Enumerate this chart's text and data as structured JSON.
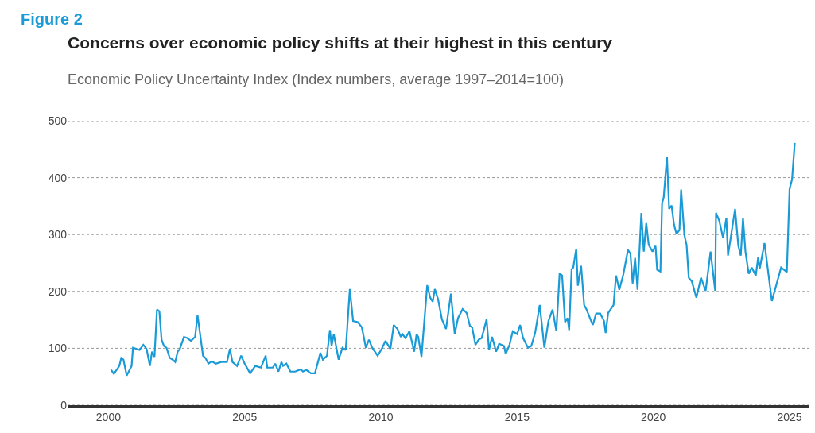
{
  "chart_data": {
    "type": "line",
    "title": "Concerns over economic policy shifts at their highest in this century",
    "subtitle": "Economic Policy Uncertainty Index (Index numbers, average 1997–2014=100)",
    "annotations": [
      "Figure 2"
    ],
    "xlim": [
      1998.5,
      2025.7
    ],
    "xticks": [
      2000,
      2005,
      2010,
      2015,
      2020,
      2025
    ],
    "ylim": [
      0,
      500
    ],
    "yticks": [
      0,
      100,
      200,
      300,
      400,
      500
    ],
    "grid": "y",
    "marker": "none",
    "line_style": "solid",
    "series": [
      {
        "color": "#1a9bd7",
        "x": [
          2000.1,
          2000.2,
          2000.4,
          2000.47,
          2000.55,
          2000.67,
          2000.85,
          2000.9,
          2001.14,
          2001.28,
          2001.4,
          2001.52,
          2001.6,
          2001.69,
          2001.78,
          2001.87,
          2001.95,
          2002.04,
          2002.13,
          2002.25,
          2002.36,
          2002.45,
          2002.54,
          2002.62,
          2002.77,
          2002.89,
          2003.03,
          2003.18,
          2003.27,
          2003.35,
          2003.47,
          2003.56,
          2003.67,
          2003.79,
          2003.94,
          2004.14,
          2004.35,
          2004.46,
          2004.55,
          2004.72,
          2004.87,
          2005.0,
          2005.2,
          2005.39,
          2005.6,
          2005.77,
          2005.83,
          2006.03,
          2006.12,
          2006.24,
          2006.35,
          2006.41,
          2006.53,
          2006.68,
          2006.85,
          2007.06,
          2007.14,
          2007.26,
          2007.43,
          2007.58,
          2007.78,
          2007.87,
          2008.02,
          2008.13,
          2008.19,
          2008.27,
          2008.45,
          2008.59,
          2008.71,
          2008.86,
          2008.98,
          2009.15,
          2009.3,
          2009.45,
          2009.56,
          2009.68,
          2009.88,
          2010.03,
          2010.17,
          2010.35,
          2010.47,
          2010.61,
          2010.73,
          2010.79,
          2010.9,
          2011.05,
          2011.22,
          2011.31,
          2011.37,
          2011.49,
          2011.7,
          2011.81,
          2011.9,
          2011.98,
          2012.1,
          2012.24,
          2012.39,
          2012.57,
          2012.71,
          2012.83,
          2013.0,
          2013.15,
          2013.27,
          2013.35,
          2013.47,
          2013.59,
          2013.7,
          2013.88,
          2013.97,
          2014.08,
          2014.23,
          2014.34,
          2014.52,
          2014.58,
          2014.72,
          2014.84,
          2015.0,
          2015.11,
          2015.22,
          2015.4,
          2015.52,
          2015.66,
          2015.83,
          2016.0,
          2016.15,
          2016.3,
          2016.44,
          2016.56,
          2016.65,
          2016.76,
          2016.85,
          2016.91,
          2017.0,
          2017.06,
          2017.17,
          2017.23,
          2017.35,
          2017.46,
          2017.55,
          2017.69,
          2017.78,
          2017.9,
          2018.05,
          2018.19,
          2018.25,
          2018.34,
          2018.54,
          2018.63,
          2018.75,
          2018.89,
          2019.07,
          2019.16,
          2019.24,
          2019.33,
          2019.42,
          2019.56,
          2019.65,
          2019.74,
          2019.83,
          2019.97,
          2020.08,
          2020.14,
          2020.26,
          2020.32,
          2020.38,
          2020.5,
          2020.58,
          2020.67,
          2020.76,
          2020.85,
          2020.96,
          2021.02,
          2021.14,
          2021.22,
          2021.3,
          2021.41,
          2021.58,
          2021.75,
          2021.92,
          2022.1,
          2022.27,
          2022.3,
          2022.42,
          2022.56,
          2022.68,
          2022.74,
          2023.0,
          2023.12,
          2023.21,
          2023.29,
          2023.38,
          2023.5,
          2023.61,
          2023.76,
          2023.85,
          2023.9,
          2024.08,
          2024.35,
          2024.69,
          2024.9,
          2025.0,
          2025.09,
          2025.19
        ],
        "values": [
          62,
          55,
          69,
          83,
          80,
          52,
          69,
          101,
          97,
          106,
          99,
          69,
          94,
          85,
          168,
          165,
          115,
          104,
          101,
          83,
          80,
          76,
          94,
          99,
          120,
          118,
          113,
          120,
          158,
          130,
          87,
          83,
          73,
          77,
          73,
          76,
          76,
          99,
          76,
          69,
          87,
          73,
          56,
          69,
          66,
          87,
          66,
          66,
          73,
          59,
          76,
          69,
          73,
          59,
          59,
          63,
          59,
          62,
          56,
          56,
          92,
          80,
          87,
          132,
          104,
          125,
          80,
          101,
          97,
          204,
          148,
          146,
          137,
          101,
          115,
          101,
          87,
          99,
          113,
          99,
          141,
          134,
          120,
          125,
          118,
          130,
          94,
          125,
          120,
          85,
          211,
          189,
          182,
          204,
          186,
          151,
          134,
          196,
          125,
          153,
          169,
          162,
          139,
          137,
          106,
          115,
          118,
          151,
          97,
          120,
          94,
          108,
          104,
          90,
          106,
          130,
          125,
          141,
          118,
          101,
          104,
          127,
          176,
          101,
          148,
          168,
          130,
          232,
          228,
          146,
          153,
          132,
          239,
          242,
          275,
          210,
          245,
          176,
          168,
          151,
          141,
          161,
          161,
          148,
          127,
          162,
          176,
          228,
          203,
          228,
          273,
          266,
          214,
          259,
          203,
          338,
          270,
          320,
          282,
          270,
          280,
          238,
          235,
          355,
          365,
          437,
          345,
          351,
          317,
          301,
          308,
          379,
          299,
          282,
          224,
          218,
          189,
          224,
          201,
          270,
          201,
          338,
          324,
          294,
          329,
          263,
          345,
          280,
          263,
          329,
          270,
          231,
          242,
          228,
          261,
          239,
          285,
          183,
          242,
          234,
          380,
          397,
          461
        ]
      }
    ]
  }
}
